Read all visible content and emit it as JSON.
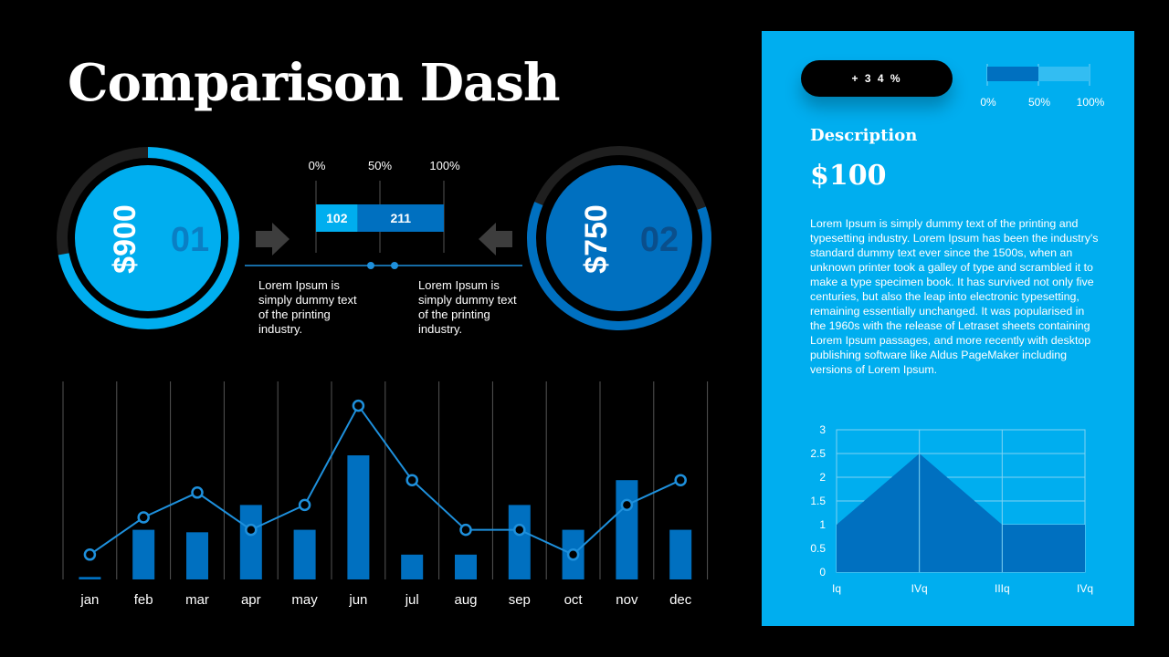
{
  "title": "Comparison Dash",
  "colors": {
    "background": "#000000",
    "accent": "#00aeef",
    "dark_blue": "#0070c0",
    "ring_track": "#1f1f1f",
    "line": "#1e90dc"
  },
  "cards": [
    {
      "amount": "$900",
      "number": "01",
      "progress": 0.72
    },
    {
      "amount": "$750",
      "number": "02",
      "progress": 0.62
    }
  ],
  "comparison_bar": {
    "ticks": [
      "0%",
      "50%",
      "100%"
    ],
    "segments": [
      {
        "label": "102",
        "value": 102
      },
      {
        "label": "211",
        "value": 211
      }
    ]
  },
  "captions": [
    "Lorem Ipsum is simply dummy text of the printing industry.",
    "Lorem Ipsum is simply dummy text of the printing industry."
  ],
  "panel": {
    "badge": "+ 3 4 %",
    "progress": {
      "ticks": [
        "0%",
        "50%",
        "100%"
      ],
      "fill": 0.5
    },
    "heading": "Description",
    "amount": "$100",
    "body": "Lorem Ipsum is simply dummy text of the printing and typesetting industry. Lorem Ipsum has been the industry's standard dummy text ever since the 1500s, when an unknown printer took a galley of type and scrambled it to make a type specimen book. It has survived not only five centuries, but also the leap into electronic typesetting, remaining essentially unchanged. It was popularised in the 1960s with the release of Letraset sheets containing Lorem Ipsum passages, and more recently with desktop publishing software like Aldus PageMaker including versions of Lorem Ipsum."
  },
  "chart_data": [
    {
      "type": "bar",
      "categories": [
        "jan",
        "feb",
        "mar",
        "apr",
        "may",
        "jun",
        "jul",
        "aug",
        "sep",
        "oct",
        "nov",
        "dec"
      ],
      "series": [
        {
          "type": "bar",
          "values": [
            0.2,
            4,
            3.8,
            6,
            4,
            10,
            2,
            2,
            6,
            4,
            8,
            4
          ]
        },
        {
          "type": "line",
          "values": [
            2,
            5,
            7,
            4,
            6,
            14,
            8,
            4,
            4,
            2,
            6,
            8
          ]
        }
      ],
      "grid": true
    },
    {
      "type": "area",
      "x": [
        "Iq",
        "IVq",
        "IIIq",
        "IVq"
      ],
      "values": [
        1,
        2.5,
        1,
        1
      ],
      "yticks": [
        "0",
        "0.5",
        "1",
        "1.5",
        "2",
        "2.5",
        "3"
      ],
      "ylim": [
        0,
        3
      ],
      "grid": true
    }
  ]
}
